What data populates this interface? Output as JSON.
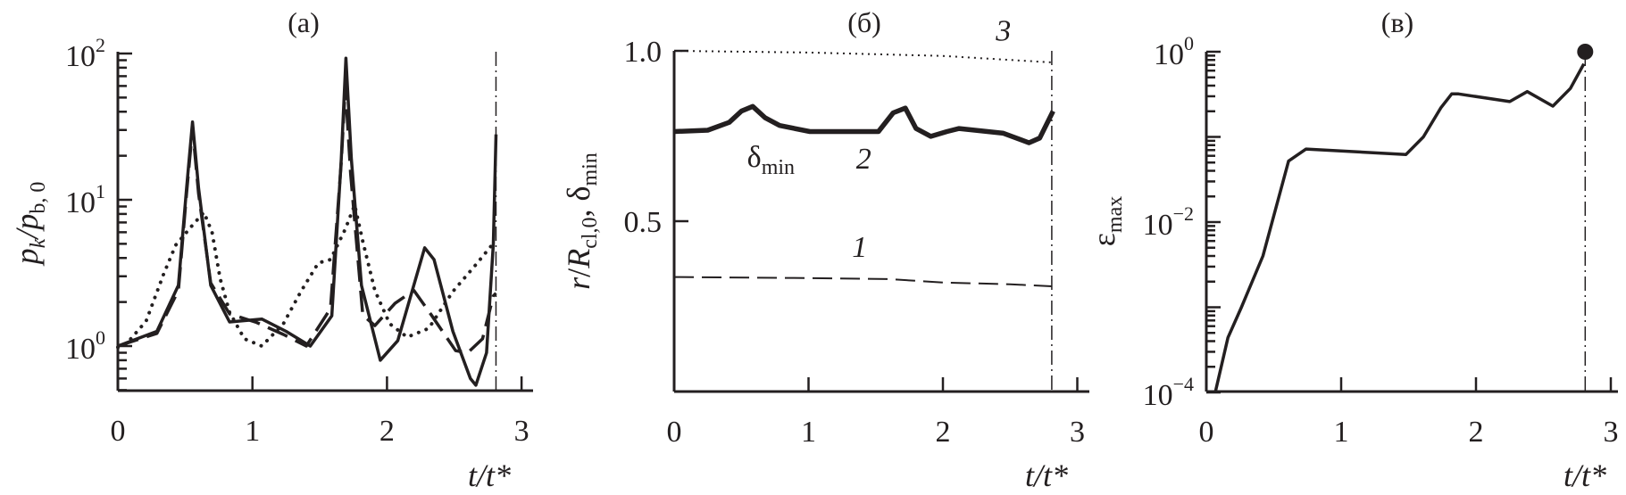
{
  "chart_data": [
    {
      "panel": "a",
      "type": "line",
      "title": "(а)",
      "xlabel": "t/t*",
      "ylabel": {
        "main": "p",
        "sub1": "k",
        "slash": "/",
        "main2": "p",
        "sub2": "b, 0"
      },
      "xlim": [
        0,
        3.1
      ],
      "ylim": [
        0.48,
        100
      ],
      "yscale": "log",
      "xticks": [
        "0",
        "1",
        "2",
        "3"
      ],
      "yticks": [
        {
          "base": "10",
          "exp": "0",
          "value": 1
        },
        {
          "base": "10",
          "exp": "1",
          "value": 10
        },
        {
          "base": "10",
          "exp": "2",
          "value": 100
        }
      ],
      "vline_x": 2.81,
      "series": [
        {
          "style": "solid",
          "x": [
            0,
            0.29,
            0.45,
            0.51,
            0.555,
            0.6,
            0.69,
            0.83,
            1.07,
            1.25,
            1.43,
            1.59,
            1.66,
            1.695,
            1.735,
            1.81,
            1.95,
            2.08,
            2.28,
            2.35,
            2.49,
            2.62,
            2.66,
            2.74,
            2.79,
            2.81
          ],
          "y": [
            1.0,
            1.26,
            2.6,
            11.9,
            34,
            12,
            2.6,
            1.46,
            1.53,
            1.26,
            1.0,
            1.61,
            19,
            93,
            19,
            2.6,
            0.8,
            1.09,
            4.7,
            3.9,
            1.26,
            0.6,
            0.54,
            0.9,
            5,
            28
          ]
        },
        {
          "style": "dashed",
          "x": [
            0,
            0.29,
            0.45,
            0.51,
            0.555,
            0.6,
            0.69,
            0.83,
            1.03,
            1.23,
            1.4,
            1.58,
            1.66,
            1.69,
            1.73,
            1.82,
            1.91,
            2.06,
            2.2,
            2.33,
            2.51,
            2.6,
            2.71,
            2.79,
            2.81
          ],
          "y": [
            1.0,
            1.22,
            2.4,
            11,
            31,
            11,
            2.7,
            1.66,
            1.45,
            1.2,
            1.0,
            1.8,
            18,
            60,
            15,
            1.63,
            1.38,
            1.96,
            2.4,
            1.63,
            0.93,
            0.9,
            1.12,
            2.2,
            2.3
          ]
        },
        {
          "style": "dotted",
          "x": [
            0,
            0.05,
            0.21,
            0.34,
            0.43,
            0.56,
            0.64,
            0.7,
            0.76,
            0.83,
            0.94,
            1.07,
            1.23,
            1.36,
            1.49,
            1.58,
            1.69,
            1.76,
            1.82,
            1.91,
            2.02,
            2.15,
            2.31,
            2.49,
            2.66,
            2.78
          ],
          "y": [
            0.98,
            1.0,
            1.48,
            3.1,
            4.9,
            6.8,
            8.2,
            6.0,
            2.9,
            1.7,
            1.12,
            1.0,
            1.42,
            2.36,
            3.7,
            3.9,
            6.3,
            9.2,
            5.2,
            2.4,
            1.42,
            1.15,
            1.32,
            2.36,
            3.6,
            4.9
          ]
        }
      ]
    },
    {
      "panel": "b",
      "type": "line",
      "title": "(б)",
      "xlabel": "t/t*",
      "ylabel": {
        "main": "r",
        "slash": "/",
        "main2": "R",
        "sub2": "cl,0",
        "rest": ", δ",
        "sub3": "min"
      },
      "xlim": [
        0,
        3.1
      ],
      "ylim": [
        0,
        1.0
      ],
      "yscale": "linear",
      "xticks": [
        "0",
        "1",
        "2",
        "3"
      ],
      "yticks": [
        {
          "label": "0.5",
          "value": 0.5
        },
        {
          "label": "1.0",
          "value": 1.0
        }
      ],
      "vline_x": 2.81,
      "series": [
        {
          "name": "1",
          "style": "dashed",
          "x": [
            0,
            1.0,
            1.6,
            2.0,
            2.5,
            2.81
          ],
          "y": [
            0.336,
            0.333,
            0.33,
            0.32,
            0.315,
            0.309
          ]
        },
        {
          "name": "2",
          "style": "thick",
          "x": [
            0,
            0.25,
            0.41,
            0.5,
            0.585,
            0.676,
            0.785,
            1.01,
            1.52,
            1.63,
            1.72,
            1.8,
            1.91,
            2.03,
            2.12,
            2.45,
            2.64,
            2.72,
            2.82
          ],
          "y": [
            0.763,
            0.767,
            0.79,
            0.823,
            0.837,
            0.804,
            0.781,
            0.763,
            0.763,
            0.818,
            0.832,
            0.772,
            0.749,
            0.763,
            0.772,
            0.758,
            0.73,
            0.744,
            0.823
          ]
        },
        {
          "name": "3",
          "style": "dotted",
          "x": [
            0,
            1.0,
            2.0,
            2.81
          ],
          "y": [
            1.0,
            0.995,
            0.985,
            0.966
          ]
        }
      ],
      "annotations": [
        {
          "text": "δ",
          "sub": "min",
          "x": 0.72,
          "y": 0.66
        },
        {
          "text": "2",
          "x": 1.41,
          "y": 0.655
        },
        {
          "text": "1",
          "x": 1.38,
          "y": 0.395
        },
        {
          "text": "3",
          "x": 2.45,
          "y": 1.03
        }
      ]
    },
    {
      "panel": "c",
      "type": "line",
      "title": "(в)",
      "xlabel": "t/t*",
      "ylabel": {
        "main": "ε",
        "sub": "max"
      },
      "xlim": [
        0,
        3.05
      ],
      "ylim": [
        0.0001,
        1
      ],
      "yscale": "log",
      "xticks": [
        "0",
        "1",
        "2",
        "3"
      ],
      "yticks": [
        {
          "base": "10",
          "exp": "−4",
          "value": 0.0001
        },
        {
          "base": "10",
          "exp": "−2",
          "value": 0.01
        },
        {
          "base": "10",
          "exp": "0",
          "value": 1
        }
      ],
      "vline_x": 2.81,
      "series": [
        {
          "style": "solid",
          "x": [
            0.066,
            0.16,
            0.26,
            0.42,
            0.61,
            0.74,
            1.48,
            1.61,
            1.74,
            1.82,
            1.87,
            2.25,
            2.38,
            2.57,
            2.7,
            2.8
          ],
          "y": [
            0.0001,
            0.00044,
            0.001,
            0.004,
            0.052,
            0.072,
            0.062,
            0.1,
            0.22,
            0.32,
            0.32,
            0.26,
            0.34,
            0.23,
            0.37,
            0.72
          ]
        }
      ],
      "marker": {
        "x": 2.81,
        "y": 1.0
      }
    }
  ]
}
